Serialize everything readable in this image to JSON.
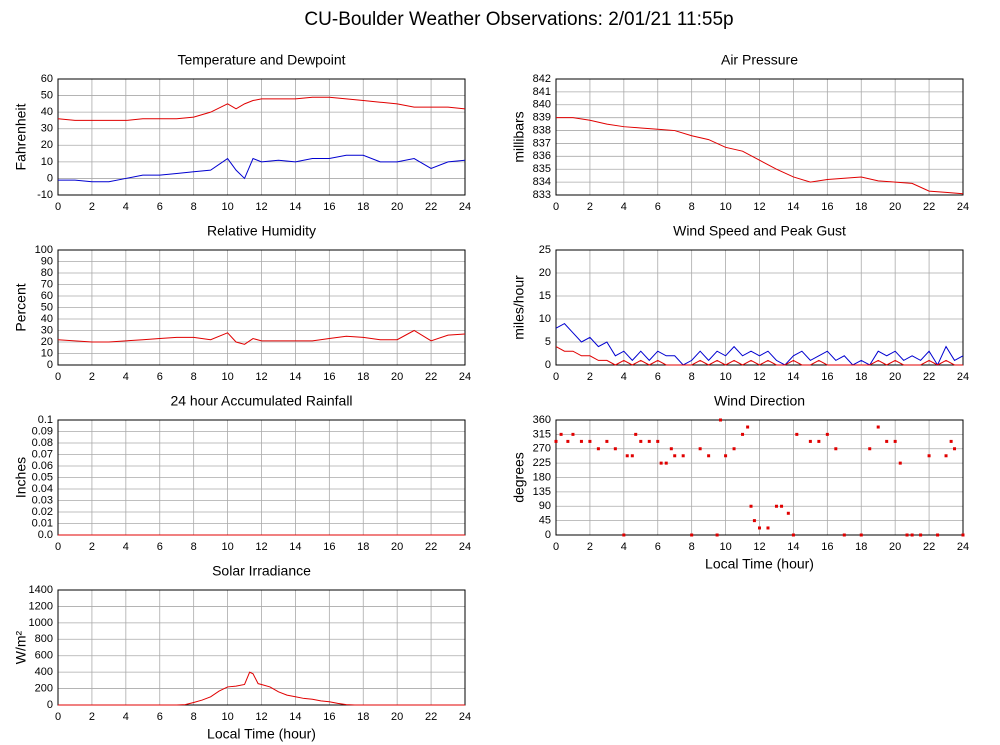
{
  "title": "CU-Boulder Weather Observations: 2/01/21 11:55p",
  "chart_data": [
    {
      "type": "line",
      "title": "Temperature and Dewpoint",
      "ylabel": "Fahrenheit",
      "x": [
        0,
        1,
        2,
        3,
        4,
        5,
        6,
        7,
        8,
        9,
        10,
        10.5,
        11,
        11.5,
        12,
        13,
        14,
        15,
        16,
        17,
        18,
        19,
        20,
        21,
        22,
        23,
        24
      ],
      "series": [
        {
          "color": "#e00000",
          "values": [
            36,
            35,
            35,
            35,
            35,
            36,
            36,
            36,
            37,
            40,
            45,
            42,
            45,
            47,
            48,
            48,
            48,
            49,
            49,
            48,
            47,
            46,
            45,
            43,
            43,
            43,
            42
          ]
        },
        {
          "color": "#0000d0",
          "values": [
            -1,
            -1,
            -2,
            -2,
            0,
            2,
            2,
            3,
            4,
            5,
            12,
            5,
            0,
            12,
            10,
            11,
            10,
            12,
            12,
            14,
            14,
            10,
            10,
            12,
            6,
            10,
            11
          ]
        }
      ],
      "xlim": [
        0,
        24
      ],
      "xticks": [
        0,
        2,
        4,
        6,
        8,
        10,
        12,
        14,
        16,
        18,
        20,
        22,
        24
      ],
      "ylim": [
        -10,
        60
      ],
      "yticks": [
        -10,
        0,
        10,
        20,
        30,
        40,
        50,
        60
      ],
      "grid": true
    },
    {
      "type": "line",
      "title": "Air Pressure",
      "ylabel": "millibars",
      "x": [
        0,
        1,
        2,
        3,
        4,
        5,
        6,
        7,
        8,
        9,
        10,
        11,
        12,
        13,
        14,
        15,
        16,
        17,
        18,
        19,
        20,
        21,
        22,
        23,
        24
      ],
      "series": [
        {
          "color": "#e00000",
          "values": [
            839,
            839,
            838.8,
            838.5,
            838.3,
            838.2,
            838.1,
            838,
            837.6,
            837.3,
            836.7,
            836.4,
            835.7,
            835,
            834.4,
            834,
            834.2,
            834.3,
            834.4,
            834.1,
            834,
            833.9,
            833.3,
            833.2,
            833.1
          ]
        }
      ],
      "xlim": [
        0,
        24
      ],
      "xticks": [
        0,
        2,
        4,
        6,
        8,
        10,
        12,
        14,
        16,
        18,
        20,
        22,
        24
      ],
      "ylim": [
        833,
        842
      ],
      "yticks": [
        833,
        834,
        835,
        836,
        837,
        838,
        839,
        840,
        841,
        842
      ],
      "grid": true
    },
    {
      "type": "line",
      "title": "Relative Humidity",
      "ylabel": "Percent",
      "x": [
        0,
        1,
        2,
        3,
        4,
        5,
        6,
        7,
        8,
        9,
        10,
        10.5,
        11,
        11.5,
        12,
        13,
        14,
        15,
        16,
        17,
        18,
        19,
        20,
        21,
        22,
        23,
        24
      ],
      "series": [
        {
          "color": "#e00000",
          "values": [
            22,
            21,
            20,
            20,
            21,
            22,
            23,
            24,
            24,
            22,
            28,
            20,
            18,
            23,
            21,
            21,
            21,
            21,
            23,
            25,
            24,
            22,
            22,
            30,
            21,
            26,
            27
          ]
        }
      ],
      "xlim": [
        0,
        24
      ],
      "xticks": [
        0,
        2,
        4,
        6,
        8,
        10,
        12,
        14,
        16,
        18,
        20,
        22,
        24
      ],
      "ylim": [
        0,
        100
      ],
      "yticks": [
        0,
        10,
        20,
        30,
        40,
        50,
        60,
        70,
        80,
        90,
        100
      ],
      "grid": true
    },
    {
      "type": "line",
      "title": "Wind Speed and Peak Gust",
      "ylabel": "miles/hour",
      "x": [
        0,
        0.5,
        1,
        1.5,
        2,
        2.5,
        3,
        3.5,
        4,
        4.5,
        5,
        5.5,
        6,
        6.5,
        7,
        7.5,
        8,
        8.5,
        9,
        9.5,
        10,
        10.5,
        11,
        11.5,
        12,
        12.5,
        13,
        13.5,
        14,
        14.5,
        15,
        15.5,
        16,
        16.5,
        17,
        17.5,
        18,
        18.5,
        19,
        19.5,
        20,
        20.5,
        21,
        21.5,
        22,
        22.5,
        23,
        23.5,
        24
      ],
      "series": [
        {
          "color": "#0000d0",
          "values": [
            8,
            9,
            7,
            5,
            6,
            4,
            5,
            2,
            3,
            1,
            3,
            1,
            3,
            2,
            2,
            0,
            1,
            3,
            1,
            3,
            2,
            4,
            2,
            3,
            2,
            3,
            1,
            0,
            2,
            3,
            1,
            2,
            3,
            1,
            2,
            0,
            1,
            0,
            3,
            2,
            3,
            1,
            2,
            1,
            3,
            0,
            4,
            1,
            2
          ]
        },
        {
          "color": "#e00000",
          "values": [
            4,
            3,
            3,
            2,
            2,
            1,
            1,
            0,
            1,
            0,
            1,
            0,
            1,
            0,
            0,
            0,
            0,
            1,
            0,
            1,
            0,
            1,
            0,
            1,
            0,
            1,
            0,
            0,
            1,
            0,
            0,
            1,
            0,
            0,
            0,
            0,
            0,
            0,
            1,
            0,
            1,
            0,
            0,
            0,
            1,
            0,
            1,
            0,
            0
          ]
        }
      ],
      "xlim": [
        0,
        24
      ],
      "xticks": [
        0,
        2,
        4,
        6,
        8,
        10,
        12,
        14,
        16,
        18,
        20,
        22,
        24
      ],
      "ylim": [
        0,
        25
      ],
      "yticks": [
        0,
        5,
        10,
        15,
        20,
        25
      ],
      "grid": true
    },
    {
      "type": "line",
      "title": "24 hour Accumulated Rainfall",
      "ylabel": "Inches",
      "x": [
        0,
        24
      ],
      "series": [
        {
          "color": "#e00000",
          "values": [
            0,
            0
          ]
        }
      ],
      "xlim": [
        0,
        24
      ],
      "xticks": [
        0,
        2,
        4,
        6,
        8,
        10,
        12,
        14,
        16,
        18,
        20,
        22,
        24
      ],
      "ylim": [
        0,
        0.1
      ],
      "yticks": [
        {
          "value": 0,
          "label": "0.0"
        },
        0.01,
        0.02,
        0.03,
        0.04,
        0.05,
        0.06,
        0.07,
        0.08,
        0.09,
        0.1
      ],
      "grid": true
    },
    {
      "type": "scatter",
      "title": "Wind Direction",
      "ylabel": "degrees",
      "xlabel": "Local Time (hour)",
      "color": "#e00000",
      "x": [
        0,
        0.3,
        0.7,
        1,
        1.5,
        2,
        2.5,
        3,
        3.5,
        4,
        4.2,
        4.5,
        4.7,
        5,
        5.5,
        6,
        6.2,
        6.5,
        6.8,
        7,
        7.5,
        8,
        8.5,
        9,
        9.5,
        9.7,
        10,
        10.5,
        11,
        11.3,
        11.5,
        11.7,
        12,
        12.5,
        13,
        13.3,
        13.7,
        14,
        14.2,
        15,
        15.5,
        16,
        16.5,
        17,
        18,
        18.5,
        19,
        19.5,
        20,
        20.3,
        20.7,
        21,
        21.5,
        22,
        22.5,
        23,
        23.3,
        23.5,
        24
      ],
      "values": [
        293,
        315,
        293,
        315,
        293,
        293,
        270,
        293,
        270,
        0,
        248,
        248,
        315,
        293,
        293,
        293,
        225,
        225,
        270,
        248,
        248,
        0,
        270,
        248,
        0,
        360,
        248,
        270,
        315,
        338,
        90,
        45,
        22,
        22,
        90,
        90,
        68,
        0,
        315,
        293,
        293,
        315,
        270,
        0,
        0,
        270,
        338,
        293,
        293,
        225,
        0,
        0,
        0,
        248,
        0,
        248,
        293,
        270,
        0
      ],
      "xlim": [
        0,
        24
      ],
      "xticks": [
        0,
        2,
        4,
        6,
        8,
        10,
        12,
        14,
        16,
        18,
        20,
        22,
        24
      ],
      "ylim": [
        0,
        360
      ],
      "yticks": [
        0,
        45,
        90,
        135,
        180,
        225,
        270,
        315,
        360
      ],
      "grid": true
    },
    {
      "type": "line",
      "title": "Solar Irradiance",
      "ylabel": "W/m²",
      "xlabel": "Local Time (hour)",
      "x": [
        0,
        7,
        7.5,
        8,
        8.5,
        9,
        9.5,
        10,
        10.5,
        11,
        11.3,
        11.5,
        11.8,
        12,
        12.5,
        13,
        13.5,
        14,
        14.5,
        15,
        15.5,
        16,
        16.5,
        17,
        17.5,
        24
      ],
      "series": [
        {
          "color": "#e00000",
          "values": [
            0,
            0,
            5,
            30,
            60,
            100,
            170,
            220,
            230,
            250,
            400,
            380,
            260,
            250,
            220,
            160,
            120,
            100,
            80,
            70,
            50,
            40,
            20,
            5,
            0,
            0
          ]
        }
      ],
      "xlim": [
        0,
        24
      ],
      "xticks": [
        0,
        2,
        4,
        6,
        8,
        10,
        12,
        14,
        16,
        18,
        20,
        22,
        24
      ],
      "ylim": [
        0,
        1400
      ],
      "yticks": [
        0,
        200,
        400,
        600,
        800,
        1000,
        1200,
        1400
      ],
      "grid": true
    }
  ]
}
